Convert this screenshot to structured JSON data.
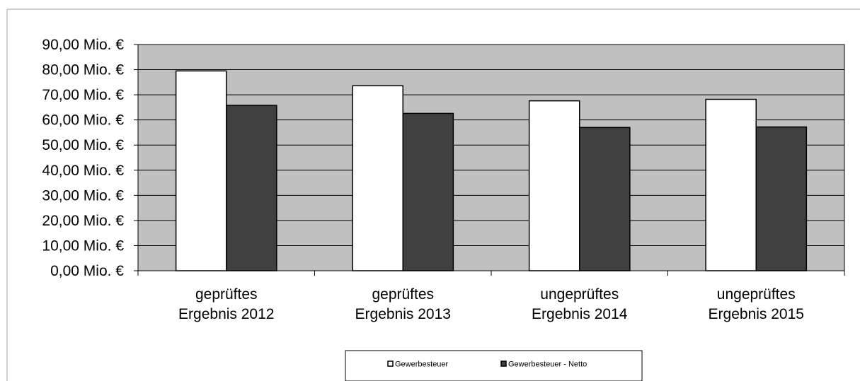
{
  "chart_data": {
    "type": "bar",
    "categories": [
      [
        "geprüftes",
        "Ergebnis 2012"
      ],
      [
        "geprüftes",
        "Ergebnis 2013"
      ],
      [
        "ungeprüftes",
        "Ergebnis 2014"
      ],
      [
        "ungeprüftes",
        "Ergebnis 2015"
      ]
    ],
    "series": [
      {
        "name": "Gewerbesteuer",
        "values": [
          79.5,
          73.6,
          67.6,
          68.2
        ],
        "color": "#ffffff"
      },
      {
        "name": "Gewerbesteuer - Netto",
        "values": [
          65.8,
          62.6,
          57.0,
          57.2
        ],
        "color": "#404040"
      }
    ],
    "yticks": [
      "0,00 Mio. €",
      "10,00 Mio. €",
      "20,00 Mio. €",
      "30,00 Mio. €",
      "40,00 Mio. €",
      "50,00 Mio. €",
      "60,00 Mio. €",
      "70,00 Mio. €",
      "80,00 Mio. €",
      "90,00 Mio. €"
    ],
    "ylim": [
      0,
      90
    ],
    "grid": true,
    "legend_position": "bottom",
    "plot_background": "#c0c0c0"
  }
}
